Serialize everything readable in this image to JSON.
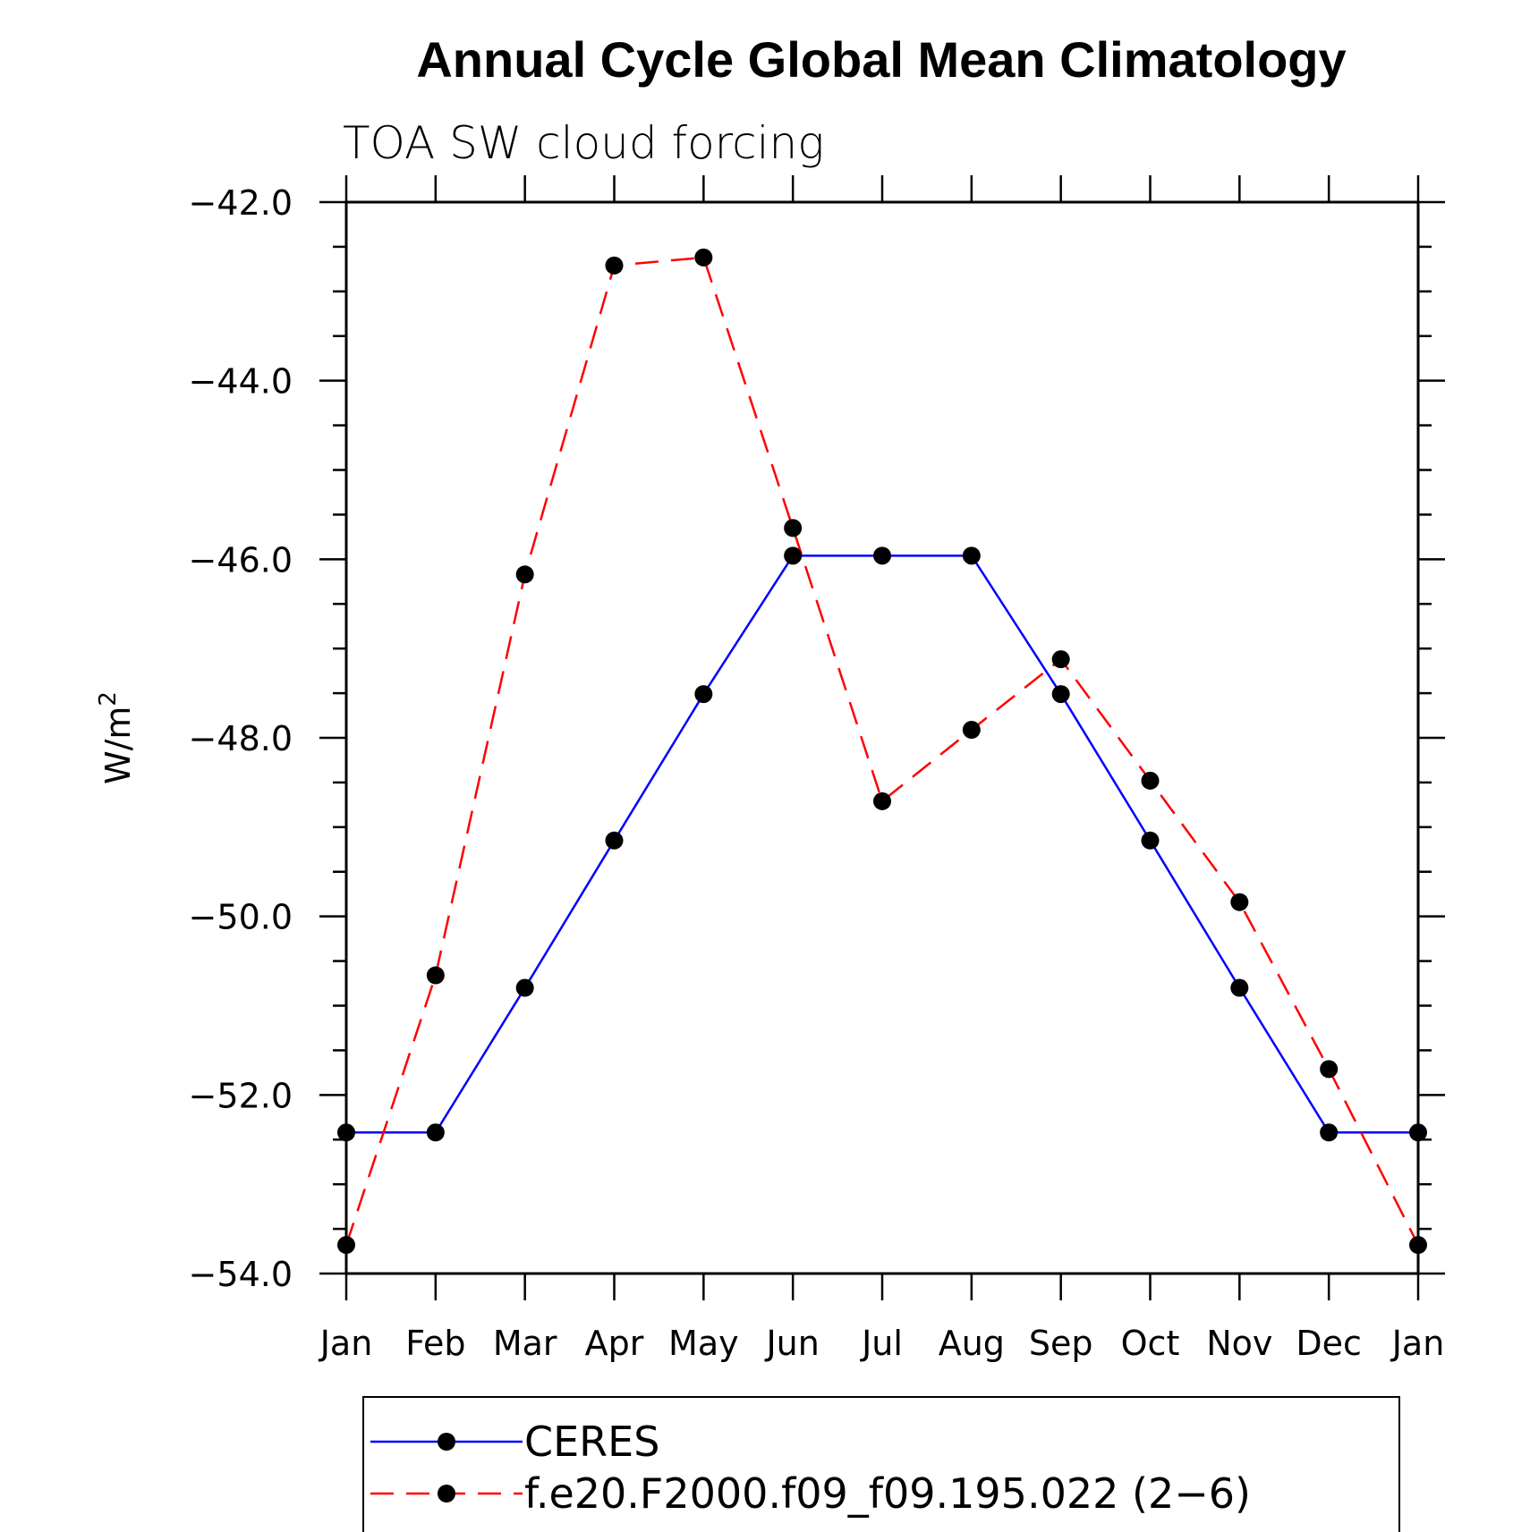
{
  "chart_data": {
    "type": "line",
    "title": "Annual Cycle Global Mean Climatology",
    "subtitle": "TOA SW cloud forcing",
    "ylabel": "W/m",
    "ylabel_sup": "2",
    "xlabel": "",
    "categories": [
      "Jan",
      "Feb",
      "Mar",
      "Apr",
      "May",
      "Jun",
      "Jul",
      "Aug",
      "Sep",
      "Oct",
      "Nov",
      "Dec",
      "Jan"
    ],
    "ylim": [
      -54.0,
      -42.0
    ],
    "yticks": [
      -42.0,
      -44.0,
      -46.0,
      -48.0,
      -50.0,
      -52.0,
      -54.0
    ],
    "ytick_labels": [
      "−42.0",
      "−44.0",
      "−46.0",
      "−48.0",
      "−50.0",
      "−52.0",
      "−54.0"
    ],
    "grid": false,
    "legend_position": "bottom",
    "series": [
      {
        "name": "CERES",
        "color": "#0000ff",
        "dash": "solid",
        "marker": "filled-circle",
        "values": [
          -52.42,
          -52.42,
          -50.8,
          -49.15,
          -47.51,
          -45.96,
          -45.96,
          -45.96,
          -47.51,
          -49.15,
          -50.8,
          -52.42,
          -52.42
        ]
      },
      {
        "name": "f.e20.F2000.f09_f09.195.022 (2−6)",
        "color": "#ff0000",
        "dash": "dashed",
        "marker": "filled-circle",
        "values": [
          -53.68,
          -50.66,
          -46.17,
          -42.71,
          -42.62,
          -45.65,
          -48.71,
          -47.91,
          -47.12,
          -48.48,
          -49.84,
          -51.71,
          -53.68
        ]
      }
    ]
  }
}
